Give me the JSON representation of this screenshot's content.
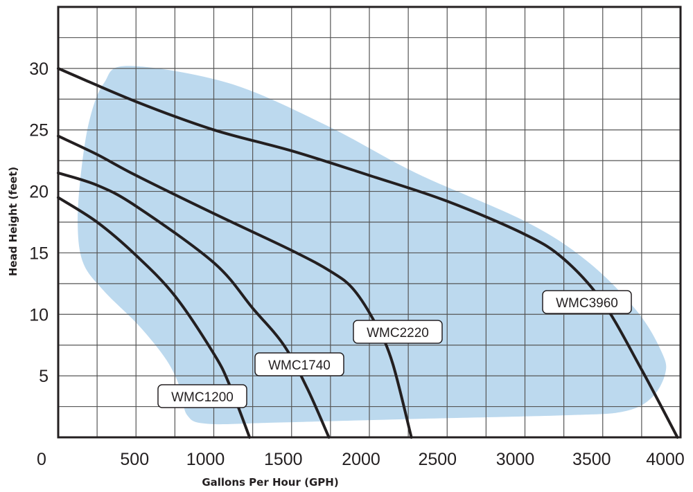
{
  "chart_data": {
    "type": "line",
    "title": "",
    "xlabel": "Gallons Per Hour (GPH)",
    "ylabel": "Head Height (feet)",
    "xlim": [
      0,
      4000
    ],
    "ylim": [
      0,
      35
    ],
    "grid": true,
    "grid_step": {
      "x": 250,
      "y": 2.5
    },
    "x_ticks": [
      {
        "value": 0,
        "label": "0"
      },
      {
        "value": 500,
        "label": "500"
      },
      {
        "value": 1000,
        "label": "1000"
      },
      {
        "value": 1500,
        "label": "1500"
      },
      {
        "value": 2000,
        "label": "2000"
      },
      {
        "value": 2500,
        "label": "2500"
      },
      {
        "value": 3000,
        "label": "3000"
      },
      {
        "value": 3500,
        "label": "3500"
      },
      {
        "value": 4000,
        "label": "4000"
      }
    ],
    "y_ticks": [
      {
        "value": 5,
        "label": "5"
      },
      {
        "value": 10,
        "label": "10"
      },
      {
        "value": 15,
        "label": "15"
      },
      {
        "value": 20,
        "label": "20"
      },
      {
        "value": 25,
        "label": "25"
      },
      {
        "value": 30,
        "label": "30"
      }
    ],
    "colors": {
      "curve": "#231f20",
      "region": "#bcd9ee",
      "grid": "#555555"
    },
    "shaded_region": [
      [
        450,
        30.2
      ],
      [
        1096,
        28.8
      ],
      [
        1719,
        25.4
      ],
      [
        2298,
        21.5
      ],
      [
        3011,
        17.5
      ],
      [
        3412,
        14.2
      ],
      [
        3724,
        10.2
      ],
      [
        3880,
        6.9
      ],
      [
        3902,
        5.2
      ],
      [
        3813,
        3.2
      ],
      [
        3635,
        2.1
      ],
      [
        3278,
        1.8
      ],
      [
        2298,
        1.5
      ],
      [
        1408,
        1.2
      ],
      [
        962,
        1.1
      ],
      [
        829,
        1.8
      ],
      [
        784,
        4.0
      ],
      [
        695,
        6.3
      ],
      [
        517,
        9.1
      ],
      [
        294,
        11.9
      ],
      [
        160,
        14.2
      ],
      [
        125,
        17.5
      ],
      [
        151,
        22.0
      ],
      [
        205,
        26.0
      ],
      [
        294,
        28.8
      ]
    ],
    "series": [
      {
        "name": "WMC1200",
        "points": [
          [
            0,
            19.5
          ],
          [
            250,
            17.5
          ],
          [
            500,
            14.8
          ],
          [
            750,
            11.5
          ],
          [
            1000,
            6.8
          ],
          [
            1100,
            4.3
          ],
          [
            1230,
            0
          ]
        ]
      },
      {
        "name": "WMC1740",
        "points": [
          [
            0,
            21.5
          ],
          [
            250,
            20.5
          ],
          [
            500,
            18.8
          ],
          [
            1000,
            14.2
          ],
          [
            1250,
            10.5
          ],
          [
            1450,
            7.5
          ],
          [
            1600,
            4
          ],
          [
            1740,
            0
          ]
        ]
      },
      {
        "name": "WMC2220",
        "points": [
          [
            0,
            24.5
          ],
          [
            250,
            23
          ],
          [
            500,
            21.3
          ],
          [
            1000,
            18.2
          ],
          [
            1500,
            15.2
          ],
          [
            1750,
            13.5
          ],
          [
            1900,
            12
          ],
          [
            2050,
            9
          ],
          [
            2150,
            6
          ],
          [
            2270,
            0
          ]
        ]
      },
      {
        "name": "WMC3960",
        "points": [
          [
            0,
            30
          ],
          [
            500,
            27.3
          ],
          [
            1000,
            25
          ],
          [
            1500,
            23.3
          ],
          [
            2000,
            21.3
          ],
          [
            2500,
            19.2
          ],
          [
            3000,
            16.5
          ],
          [
            3250,
            14.5
          ],
          [
            3500,
            11
          ],
          [
            3750,
            5.5
          ],
          [
            3980,
            0
          ]
        ]
      }
    ]
  }
}
